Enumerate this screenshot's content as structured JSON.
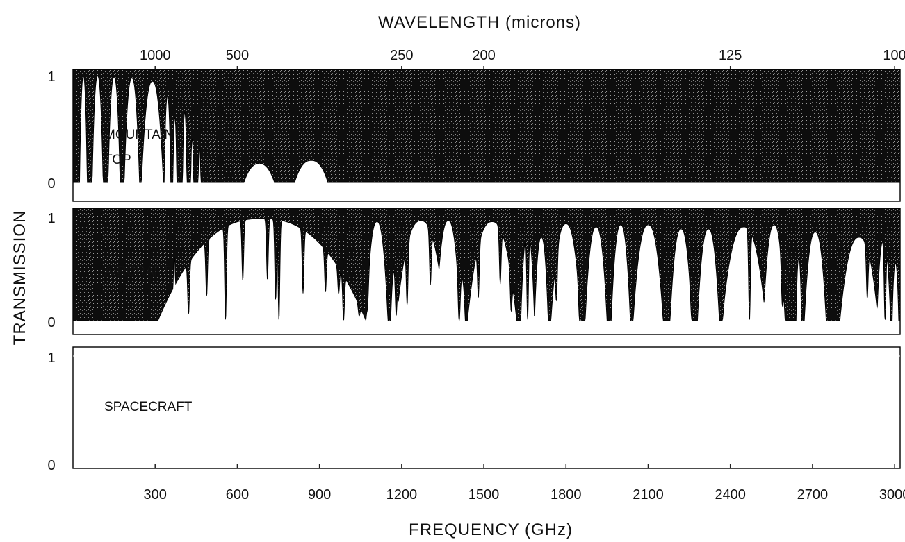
{
  "chart_data": {
    "type": "area",
    "title": "",
    "top_axis": {
      "label": "WAVELENGTH (microns)",
      "ticks": [
        {
          "label": "1000",
          "frequency_ghz": 300
        },
        {
          "label": "500",
          "frequency_ghz": 600
        },
        {
          "label": "250",
          "frequency_ghz": 1200
        },
        {
          "label": "200",
          "frequency_ghz": 1500
        },
        {
          "label": "125",
          "frequency_ghz": 2400
        },
        {
          "label": "100",
          "frequency_ghz": 3000
        }
      ]
    },
    "xlabel": "FREQUENCY (GHz)",
    "ylabel": "TRANSMISSION",
    "xlim": [
      0,
      3020
    ],
    "x_ticks": [
      300,
      600,
      900,
      1200,
      1500,
      1800,
      2100,
      2400,
      2700,
      3000
    ],
    "ylim": [
      0,
      1
    ],
    "y_ticks": [
      "0",
      "1"
    ],
    "grid": false,
    "legend": "none",
    "fill_color": "#111111",
    "panels": [
      {
        "label_lines": [
          "MOUNTAIN",
          "TOP"
        ],
        "windows": [
          {
            "center": 38,
            "half_width": 14,
            "peak": 0.99
          },
          {
            "center": 90,
            "half_width": 20,
            "peak": 0.99
          },
          {
            "center": 150,
            "half_width": 22,
            "peak": 0.98
          },
          {
            "center": 215,
            "half_width": 28,
            "peak": 0.97
          },
          {
            "center": 290,
            "half_width": 40,
            "peak": 0.94
          },
          {
            "center": 345,
            "half_width": 12,
            "peak": 0.8
          },
          {
            "center": 372,
            "half_width": 7,
            "peak": 0.6
          },
          {
            "center": 408,
            "half_width": 8,
            "peak": 0.65
          },
          {
            "center": 435,
            "half_width": 5,
            "peak": 0.4
          },
          {
            "center": 462,
            "half_width": 5,
            "peak": 0.3
          },
          {
            "center": 680,
            "half_width": 55,
            "peak": 0.17
          },
          {
            "center": 870,
            "half_width": 60,
            "peak": 0.2
          }
        ],
        "absorption_lines": []
      },
      {
        "label_lines": [
          "AIRCRAFT"
        ],
        "windows": [
          {
            "center": 370,
            "half_width": 6,
            "peak": 0.6
          },
          {
            "center": 690,
            "half_width": 380,
            "peak": 0.98
          },
          {
            "center": 1110,
            "half_width": 40,
            "peak": 0.95
          },
          {
            "center": 1175,
            "half_width": 15,
            "peak": 0.5
          },
          {
            "center": 1270,
            "half_width": 90,
            "peak": 0.96
          },
          {
            "center": 1370,
            "half_width": 45,
            "peak": 0.96
          },
          {
            "center": 1420,
            "half_width": 12,
            "peak": 0.4
          },
          {
            "center": 1530,
            "half_width": 90,
            "peak": 0.95
          },
          {
            "center": 1660,
            "half_width": 25,
            "peak": 0.85
          },
          {
            "center": 1710,
            "half_width": 25,
            "peak": 0.8
          },
          {
            "center": 1800,
            "half_width": 55,
            "peak": 0.93
          },
          {
            "center": 1910,
            "half_width": 40,
            "peak": 0.9
          },
          {
            "center": 2000,
            "half_width": 35,
            "peak": 0.92
          },
          {
            "center": 2100,
            "half_width": 55,
            "peak": 0.92
          },
          {
            "center": 2220,
            "half_width": 40,
            "peak": 0.88
          },
          {
            "center": 2320,
            "half_width": 40,
            "peak": 0.88
          },
          {
            "center": 2450,
            "half_width": 80,
            "peak": 0.9
          },
          {
            "center": 2560,
            "half_width": 40,
            "peak": 0.92
          },
          {
            "center": 2650,
            "half_width": 10,
            "peak": 0.6
          },
          {
            "center": 2710,
            "half_width": 40,
            "peak": 0.85
          },
          {
            "center": 2870,
            "half_width": 70,
            "peak": 0.8
          },
          {
            "center": 2960,
            "half_width": 25,
            "peak": 0.78
          },
          {
            "center": 3003,
            "half_width": 12,
            "peak": 0.55
          }
        ],
        "absorption_lines": [
          {
            "center": 422,
            "depth": 0.9
          },
          {
            "center": 488,
            "depth": 0.7
          },
          {
            "center": 557,
            "depth": 1.0
          },
          {
            "center": 620,
            "depth": 0.6
          },
          {
            "center": 710,
            "depth": 0.6
          },
          {
            "center": 740,
            "depth": 0.8
          },
          {
            "center": 752,
            "depth": 1.0
          },
          {
            "center": 840,
            "depth": 0.7
          },
          {
            "center": 922,
            "depth": 0.6
          },
          {
            "center": 970,
            "depth": 0.5
          },
          {
            "center": 988,
            "depth": 1.0
          },
          {
            "center": 1045,
            "depth": 0.7
          },
          {
            "center": 1075,
            "depth": 0.6
          },
          {
            "center": 1180,
            "depth": 0.9
          },
          {
            "center": 1220,
            "depth": 0.8
          },
          {
            "center": 1305,
            "depth": 0.6
          },
          {
            "center": 1410,
            "depth": 1.0
          },
          {
            "center": 1480,
            "depth": 0.7
          },
          {
            "center": 1560,
            "depth": 0.6
          },
          {
            "center": 1600,
            "depth": 0.8
          },
          {
            "center": 1660,
            "depth": 1.0
          },
          {
            "center": 1765,
            "depth": 0.7
          },
          {
            "center": 1850,
            "depth": 1.0
          },
          {
            "center": 1955,
            "depth": 0.8
          },
          {
            "center": 2040,
            "depth": 0.9
          },
          {
            "center": 2160,
            "depth": 1.0
          },
          {
            "center": 2260,
            "depth": 0.8
          },
          {
            "center": 2370,
            "depth": 0.7
          },
          {
            "center": 2470,
            "depth": 1.0
          },
          {
            "center": 2590,
            "depth": 0.7
          },
          {
            "center": 2790,
            "depth": 1.0
          },
          {
            "center": 2900,
            "depth": 0.7
          },
          {
            "center": 2965,
            "depth": 1.0
          }
        ]
      },
      {
        "label_lines": [
          "SPACECRAFT"
        ],
        "windows": [],
        "absorption_lines": [],
        "constant": 1
      }
    ]
  }
}
